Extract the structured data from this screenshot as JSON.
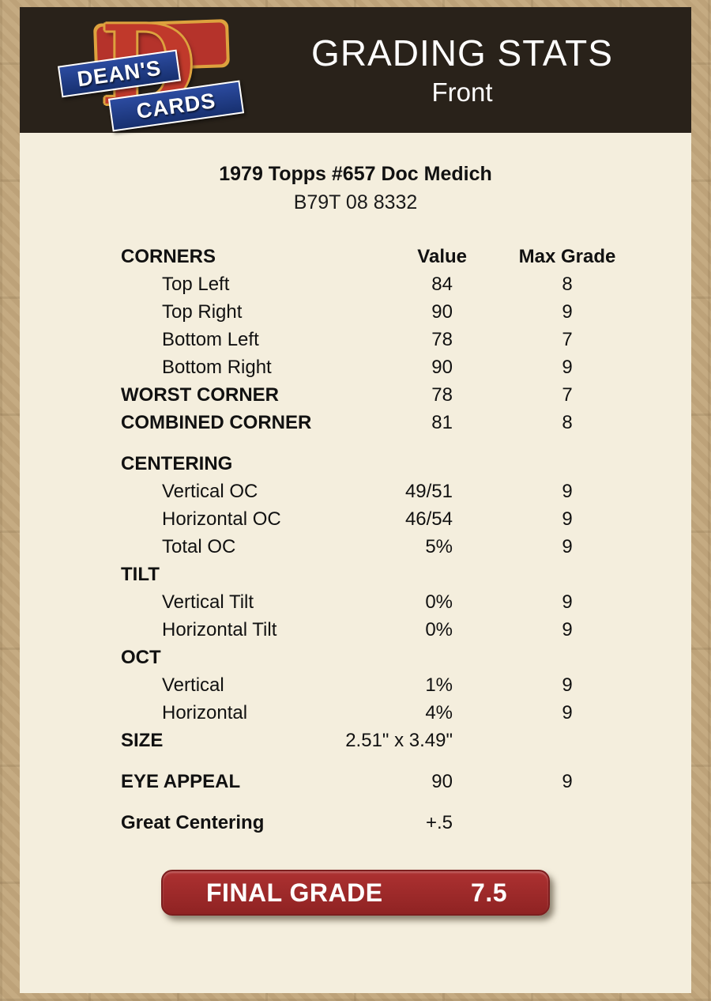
{
  "colors": {
    "page_background": "#c2a77d",
    "card_background": "#f4eedd",
    "header_background": "#29221a",
    "final_grade_red": "#a02c2c",
    "logo_red": "#c0392b",
    "logo_gold": "#dda23e",
    "logo_blue": "#1e3c8c"
  },
  "header": {
    "title": "GRADING STATS",
    "subtitle": "Front",
    "logo": {
      "monogram": "D",
      "line1": "DEAN'S",
      "line2": "CARDS"
    }
  },
  "card": {
    "title": "1979 Topps #657 Doc Medich",
    "code": "B79T 08 8332"
  },
  "table": {
    "rows": [
      {
        "label": "CORNERS",
        "value": "Value",
        "max": "Max Grade"
      },
      {
        "label": "Top Left",
        "value": "84",
        "max": "8"
      },
      {
        "label": "Top Right",
        "value": "90",
        "max": "9"
      },
      {
        "label": "Bottom Left",
        "value": "78",
        "max": "7"
      },
      {
        "label": "Bottom Right",
        "value": "90",
        "max": "9"
      },
      {
        "label": "WORST CORNER",
        "value": "78",
        "max": "7"
      },
      {
        "label": "COMBINED CORNER",
        "value": "81",
        "max": "8"
      },
      {
        "label": "CENTERING",
        "value": "",
        "max": ""
      },
      {
        "label": "Vertical OC",
        "value": "49/51",
        "max": "9"
      },
      {
        "label": "Horizontal OC",
        "value": "46/54",
        "max": "9"
      },
      {
        "label": "Total OC",
        "value": "5%",
        "max": "9"
      },
      {
        "label": "TILT",
        "value": "",
        "max": ""
      },
      {
        "label": "Vertical Tilt",
        "value": "0%",
        "max": "9"
      },
      {
        "label": "Horizontal Tilt",
        "value": "0%",
        "max": "9"
      },
      {
        "label": "OCT",
        "value": "",
        "max": ""
      },
      {
        "label": "Vertical",
        "value": "1%",
        "max": "9"
      },
      {
        "label": "Horizontal",
        "value": "4%",
        "max": "9"
      },
      {
        "label": "SIZE",
        "value": "2.51\" x 3.49\"",
        "max": ""
      },
      {
        "label": "EYE APPEAL",
        "value": "90",
        "max": "9"
      },
      {
        "label": "Great Centering",
        "value": "+.5",
        "max": ""
      }
    ]
  },
  "final_grade": {
    "label": "FINAL GRADE",
    "value": "7.5"
  }
}
